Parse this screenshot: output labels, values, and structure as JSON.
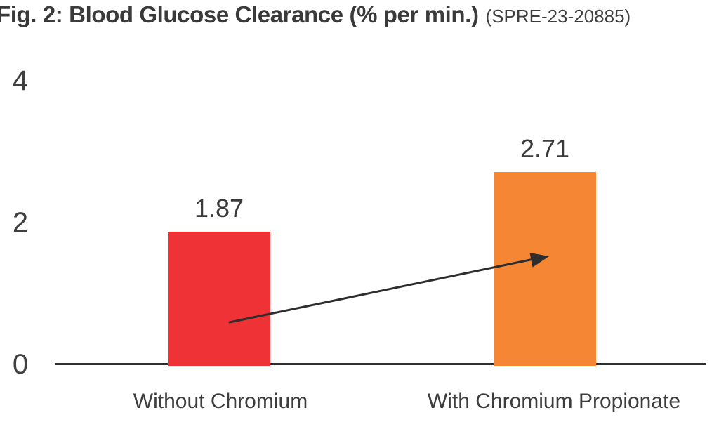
{
  "header": {
    "title": "Fig. 2: Blood Glucose Clearance (% per min.)",
    "code": "(SPRE-23-20885)"
  },
  "chart_data": {
    "type": "bar",
    "title": "Fig. 2: Blood Glucose Clearance (% per min.)",
    "subtitle": "(SPRE-23-20885)",
    "categories": [
      "Without Chromium",
      "With Chromium Propionate"
    ],
    "values": [
      1.87,
      2.71
    ],
    "value_labels": [
      "1.87",
      "2.71"
    ],
    "ylim": [
      0,
      4
    ],
    "yticks": [
      0,
      2,
      4
    ],
    "xlabel": "",
    "ylabel": "",
    "grid": false,
    "legend": false,
    "bar_colors": [
      "#ee3235",
      "#f58634"
    ],
    "annotations": [
      {
        "type": "arrow",
        "from": "Without Chromium bar",
        "to": "With Chromium Propionate bar"
      }
    ]
  },
  "colors": {
    "bar_without_chromium": "#ee3235",
    "bar_with_chromium": "#f58634",
    "axis_line": "#2e2e2e",
    "arrow": "#2e2e2e",
    "title_text": "#3a3a3a",
    "label_text": "#3d3d3d",
    "background": "#ffffff"
  }
}
